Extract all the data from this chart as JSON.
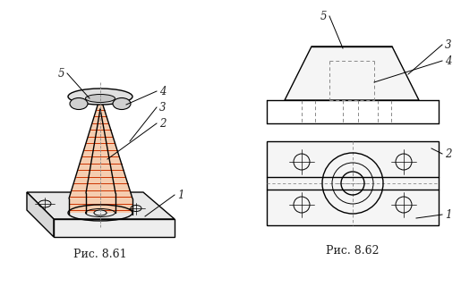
{
  "fig_width": 5.15,
  "fig_height": 3.21,
  "dpi": 100,
  "bg_color": "#ffffff",
  "line_color": "#000000",
  "hatch_color": "#cc3300",
  "dashed_color": "#888888",
  "label_color": "#222222",
  "caption1": "Рис. 8.61",
  "caption2": "Рис. 8.62",
  "caption_fontsize": 9,
  "label_fontsize": 8.5
}
